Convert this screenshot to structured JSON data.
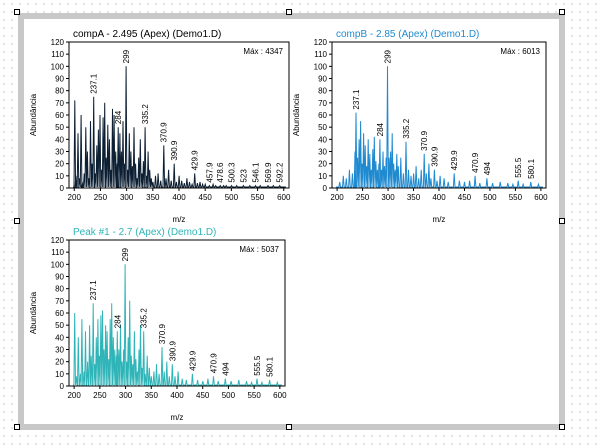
{
  "colors": {
    "compA": "#0d1f33",
    "compB": "#1f8ad0",
    "peak1": "#2fb5b8",
    "frame": "#c8c8c8"
  },
  "chart_data": [
    {
      "type": "line",
      "title": "compA - 2.495 (Apex)  (Demo1.D)",
      "title_color": "#000000",
      "max_label": "Máx : 4347",
      "xlabel": "m/z",
      "ylabel": "Abundância",
      "xlim": [
        190,
        610
      ],
      "ylim": [
        0,
        120
      ],
      "xticks": [
        200,
        250,
        300,
        350,
        400,
        450,
        500,
        550,
        600
      ],
      "yticks": [
        0,
        10,
        20,
        30,
        40,
        50,
        60,
        70,
        80,
        90,
        100,
        110,
        120
      ],
      "series": [
        {
          "color": "#0d1f33",
          "x": [
            201.1,
            203.1,
            207.1,
            210.1,
            213.1,
            215.1,
            219.1,
            222.1,
            225.1,
            228.1,
            231.1,
            234.1,
            237.1,
            240.1,
            243.1,
            246.1,
            249.1,
            252.1,
            255.1,
            258.1,
            261.1,
            264.1,
            267.1,
            270.1,
            273.1,
            276.1,
            279.1,
            282.1,
            284.0,
            287.1,
            290.1,
            293.1,
            296.1,
            299.0,
            302.1,
            305.1,
            308.1,
            311.1,
            314.1,
            317.1,
            320.1,
            323.1,
            326.1,
            329.1,
            332.1,
            335.2,
            338.1,
            341.1,
            344.1,
            347.1,
            350.1,
            355.1,
            360.1,
            365.1,
            370.9,
            375.1,
            380.1,
            385.1,
            390.9,
            395.1,
            400.1,
            405.1,
            410.1,
            415.1,
            420.1,
            425.1,
            429.9,
            435.1,
            440.1,
            445.1,
            450.1,
            457.9,
            465.1,
            470.1,
            478.6,
            485.1,
            490.1,
            500.3,
            510.1,
            523.0,
            535.1,
            546.1,
            555.1,
            569.9,
            580.1,
            592.2
          ],
          "y": [
            72,
            10,
            45,
            8,
            60,
            5,
            12,
            50,
            30,
            8,
            55,
            20,
            75,
            12,
            35,
            48,
            60,
            15,
            58,
            70,
            25,
            52,
            40,
            15,
            65,
            60,
            30,
            20,
            50,
            45,
            30,
            55,
            20,
            100,
            15,
            45,
            30,
            18,
            50,
            20,
            8,
            25,
            40,
            12,
            22,
            50,
            10,
            30,
            15,
            8,
            5,
            10,
            12,
            6,
            35,
            8,
            15,
            6,
            20,
            5,
            10,
            6,
            4,
            8,
            5,
            3,
            12,
            4,
            5,
            3,
            3,
            2,
            3,
            2,
            2,
            2,
            2,
            2,
            2,
            2,
            2,
            2,
            2,
            2,
            2,
            2
          ]
        }
      ],
      "labels": [
        {
          "x": 237.1,
          "text": "237.1"
        },
        {
          "x": 284,
          "text": "284"
        },
        {
          "x": 299,
          "text": "299"
        },
        {
          "x": 335.2,
          "text": "335.2"
        },
        {
          "x": 370.9,
          "text": "370.9"
        },
        {
          "x": 390.9,
          "text": "390.9"
        },
        {
          "x": 429.9,
          "text": "429.9"
        },
        {
          "x": 457.9,
          "text": "457.9"
        },
        {
          "x": 478.6,
          "text": "478.6"
        },
        {
          "x": 500.3,
          "text": "500.3"
        },
        {
          "x": 523,
          "text": "523"
        },
        {
          "x": 546.1,
          "text": "546.1"
        },
        {
          "x": 569.9,
          "text": "569.9"
        },
        {
          "x": 592.2,
          "text": "592.2"
        }
      ]
    },
    {
      "type": "line",
      "title": "compB - 2.85 (Apex)  (Demo1.D)",
      "title_color": "#1f8ad0",
      "max_label": "Máx : 6013",
      "xlabel": "m/z",
      "ylabel": "Abundância",
      "xlim": [
        190,
        610
      ],
      "ylim": [
        0,
        120
      ],
      "xticks": [
        200,
        250,
        300,
        350,
        400,
        450,
        500,
        550,
        600
      ],
      "yticks": [
        0,
        10,
        20,
        30,
        40,
        50,
        60,
        70,
        80,
        90,
        100,
        110,
        120
      ],
      "series": [
        {
          "color": "#1f8ad0",
          "x": [
            205.1,
            212.1,
            218.1,
            224.1,
            230.1,
            235.1,
            237.1,
            240.1,
            243.1,
            246.1,
            249.1,
            252.1,
            255.1,
            258.1,
            261.1,
            264.1,
            267.1,
            270.1,
            273.1,
            276.1,
            279.1,
            282.1,
            284.0,
            287.1,
            290.1,
            293.1,
            296.1,
            299.0,
            302.1,
            305.1,
            308.1,
            311.1,
            314.1,
            317.1,
            320.1,
            325.1,
            330.1,
            335.2,
            340.1,
            345.1,
            350.1,
            355.1,
            360.1,
            365.1,
            370.9,
            375.1,
            380.1,
            384.1,
            390.9,
            396.1,
            402.1,
            410.1,
            418.1,
            429.9,
            440.1,
            450.1,
            460.1,
            470.9,
            480.1,
            494.0,
            505.1,
            520.1,
            535.1,
            545.1,
            555.5,
            565.1,
            580.1,
            595.1
          ],
          "y": [
            5,
            10,
            8,
            15,
            12,
            30,
            62,
            25,
            40,
            55,
            20,
            45,
            35,
            18,
            40,
            28,
            15,
            32,
            42,
            22,
            15,
            20,
            40,
            15,
            30,
            18,
            25,
            100,
            25,
            30,
            45,
            20,
            15,
            28,
            18,
            25,
            12,
            38,
            15,
            10,
            12,
            18,
            8,
            15,
            28,
            12,
            20,
            8,
            15,
            6,
            10,
            8,
            5,
            12,
            6,
            5,
            6,
            10,
            4,
            8,
            4,
            5,
            4,
            3,
            6,
            3,
            5,
            3
          ]
        }
      ],
      "labels": [
        {
          "x": 237.1,
          "text": "237.1"
        },
        {
          "x": 284,
          "text": "284"
        },
        {
          "x": 299,
          "text": "299"
        },
        {
          "x": 335.2,
          "text": "335.2"
        },
        {
          "x": 370.9,
          "text": "370.9"
        },
        {
          "x": 390.9,
          "text": "390.9"
        },
        {
          "x": 429.9,
          "text": "429.9"
        },
        {
          "x": 470.9,
          "text": "470.9"
        },
        {
          "x": 494,
          "text": "494"
        },
        {
          "x": 555.5,
          "text": "555.5"
        },
        {
          "x": 580.1,
          "text": "580.1"
        }
      ]
    },
    {
      "type": "line",
      "title": "Peak #1 - 2.7 (Apex)  (Demo1.D)",
      "title_color": "#2fb5b8",
      "max_label": "Máx : 5037",
      "xlabel": "m/z",
      "ylabel": "Abundância",
      "xlim": [
        190,
        610
      ],
      "ylim": [
        0,
        120
      ],
      "xticks": [
        200,
        250,
        300,
        350,
        400,
        450,
        500,
        550,
        600
      ],
      "yticks": [
        0,
        10,
        20,
        30,
        40,
        50,
        60,
        70,
        80,
        90,
        100,
        110,
        120
      ],
      "series": [
        {
          "color": "#2fb5b8",
          "x": [
            201.1,
            204.1,
            208.1,
            212.1,
            215.1,
            219.1,
            222.1,
            226.1,
            230.1,
            233.1,
            237.1,
            240.1,
            243.1,
            246.1,
            249.1,
            252.1,
            255.1,
            258.1,
            261.1,
            264.1,
            267.1,
            270.1,
            273.1,
            276.1,
            279.1,
            282.1,
            284.0,
            287.1,
            290.1,
            293.1,
            296.1,
            299.0,
            302.1,
            305.1,
            308.1,
            311.1,
            314.1,
            317.1,
            320.1,
            323.1,
            326.1,
            329.1,
            332.1,
            335.2,
            338.1,
            342.1,
            346.1,
            350.1,
            355.1,
            360.1,
            365.1,
            370.9,
            375.1,
            380.1,
            385.1,
            390.9,
            396.1,
            402.1,
            410.1,
            418.1,
            429.9,
            440.1,
            450.1,
            460.1,
            470.9,
            480.1,
            494.0,
            505.1,
            520.1,
            535.1,
            545.1,
            555.5,
            565.1,
            580.1,
            595.1
          ],
          "y": [
            60,
            8,
            40,
            10,
            55,
            12,
            45,
            20,
            50,
            25,
            68,
            18,
            40,
            55,
            25,
            58,
            62,
            30,
            50,
            45,
            22,
            55,
            68,
            40,
            30,
            25,
            45,
            30,
            50,
            20,
            30,
            100,
            20,
            40,
            70,
            25,
            18,
            45,
            22,
            12,
            30,
            50,
            15,
            45,
            10,
            25,
            15,
            8,
            12,
            18,
            10,
            32,
            12,
            20,
            8,
            18,
            8,
            12,
            6,
            5,
            10,
            5,
            4,
            6,
            8,
            4,
            6,
            4,
            5,
            4,
            3,
            6,
            3,
            5,
            3
          ]
        }
      ],
      "labels": [
        {
          "x": 237.1,
          "text": "237.1"
        },
        {
          "x": 284,
          "text": "284"
        },
        {
          "x": 299,
          "text": "299"
        },
        {
          "x": 335.2,
          "text": "335.2"
        },
        {
          "x": 370.9,
          "text": "370.9"
        },
        {
          "x": 390.9,
          "text": "390.9"
        },
        {
          "x": 429.9,
          "text": "429.9"
        },
        {
          "x": 470.9,
          "text": "470.9"
        },
        {
          "x": 494,
          "text": "494"
        },
        {
          "x": 555.5,
          "text": "555.5"
        },
        {
          "x": 580.1,
          "text": "580.1"
        }
      ]
    }
  ]
}
